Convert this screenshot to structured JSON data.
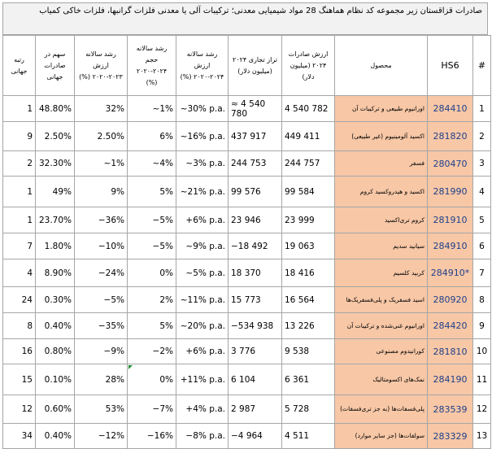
{
  "title": "صادرات قزاقستان زیر مجموعه کد نظام هماهنگ 28 مواد شیمیایی معدنی؛ ترکیبات آلی یا معدنی فلزات گرانبها، فلزات خاکی کمیاب",
  "headers": {
    "rank": "رتبه جهانی",
    "share": "سهم در صادرات جهانی",
    "value_growth": "رشد سالانه ارزش ۲۰۲۳-۲۰۲۰ (%)",
    "volume_growth": "رشد سالانه حجم ۲۰۲۴-۲۰۲۰ (%)",
    "annual_value_growth": "رشد سالانه ارزش ۲۰۲۴-۲۰۲۰ (%)",
    "trade_balance": "تراز تجاری ۲۰۲۴ (میلیون دلار)",
    "exports": "ارزش صادرات ۲۰۲۴ (میلیون دلار)",
    "product": "محصول",
    "hs6": "HS6",
    "index": "#"
  },
  "rows": [
    {
      "rank": "1",
      "share": "48.80%",
      "value_growth": "32%",
      "volume_growth": "~1%",
      "annual_value_growth": "~30% p.a.",
      "trade_balance": "≈ 4 540 780",
      "exports": "4 540 782",
      "product": "اورانیوم طبیعی و ترکیبات آن",
      "hs6": "284410",
      "index": "1"
    },
    {
      "rank": "9",
      "share": "2.50%",
      "value_growth": "2.50%",
      "volume_growth": "6%",
      "annual_value_growth": "~16% p.a.",
      "trade_balance": "437 917",
      "exports": "449 411",
      "product": "اکسید آلومینیوم (غیر طبیعی)",
      "hs6": "281820",
      "index": "2"
    },
    {
      "rank": "2",
      "share": "32.30%",
      "value_growth": "~1%",
      "volume_growth": "~4%",
      "annual_value_growth": "~3% p.a.",
      "trade_balance": "244 753",
      "exports": "244 757",
      "product": "فسفر",
      "hs6": "280470",
      "index": "3"
    },
    {
      "rank": "1",
      "share": "49%",
      "value_growth": "9%",
      "volume_growth": "5%",
      "annual_value_growth": "~21% p.a.",
      "trade_balance": "99 576",
      "exports": "99 584",
      "product": "اکسید و هیدروکسید کروم",
      "hs6": "281990",
      "index": "4"
    },
    {
      "rank": "1",
      "share": "23.70%",
      "value_growth": "−36%",
      "volume_growth": "−5%",
      "annual_value_growth": "+6% p.a.",
      "trade_balance": "23 946",
      "exports": "23 999",
      "product": "کروم تری‌اکسید",
      "hs6": "281910",
      "index": "5"
    },
    {
      "rank": "7",
      "share": "1.80%",
      "value_growth": "−10%",
      "volume_growth": "−5%",
      "annual_value_growth": "~9% p.a.",
      "trade_balance": "−18 492",
      "exports": "19 063",
      "product": "سیانید سدیم",
      "hs6": "284910",
      "index": "6"
    },
    {
      "rank": "4",
      "share": "8.90%",
      "value_growth": "−24%",
      "volume_growth": "0%",
      "annual_value_growth": "~5% p.a.",
      "trade_balance": "18 370",
      "exports": "18 416",
      "product": "کربید کلسیم",
      "hs6": "284910*",
      "index": "7"
    },
    {
      "rank": "24",
      "share": "0.30%",
      "value_growth": "−5%",
      "volume_growth": "2%",
      "annual_value_growth": "~11% p.a.",
      "trade_balance": "15 773",
      "exports": "16 564",
      "product": "اسید فسفریک و پلی‌فسفریک‌ها",
      "hs6": "280920",
      "index": "8"
    },
    {
      "rank": "8",
      "share": "0.40%",
      "value_growth": "−35%",
      "volume_growth": "5%",
      "annual_value_growth": "~20% p.a.",
      "trade_balance": "−534 938",
      "exports": "13 226",
      "product": "اورانیوم غنی‌شده و ترکیبات آن",
      "hs6": "284420",
      "index": "9"
    },
    {
      "rank": "16",
      "share": "0.80%",
      "value_growth": "−9%",
      "volume_growth": "−2%",
      "annual_value_growth": "+6% p.a.",
      "trade_balance": "3 776",
      "exports": "9 538",
      "product": "کورانیدوم مصنوعی",
      "hs6": "281810",
      "index": "10"
    },
    {
      "rank": "15",
      "share": "0.10%",
      "value_growth": "28%",
      "volume_growth": "0%",
      "annual_value_growth": "+11% p.a.",
      "trade_balance": "6 104",
      "exports": "6 361",
      "product": "نمک‌های اکسومتالیک",
      "hs6": "284190",
      "index": "11"
    },
    {
      "rank": "12",
      "share": "0.60%",
      "value_growth": "53%",
      "volume_growth": "−7%",
      "annual_value_growth": "+4% p.a.",
      "trade_balance": "2 987",
      "exports": "5 728",
      "product": "پلی‌فسفات‌ها (به جز تری‌فسفات)",
      "hs6": "283539",
      "index": "12"
    },
    {
      "rank": "34",
      "share": "0.40%",
      "value_growth": "−12%",
      "volume_growth": "−16%",
      "annual_value_growth": "−8% p.a.",
      "trade_balance": "−4 964",
      "exports": "4 511",
      "product": "سولفات‌ها (جز سایر موارد)",
      "hs6": "283329",
      "index": "13"
    }
  ],
  "colors": {
    "product_fill": "#f7c7a6",
    "hs6_text": "#1f3f8a",
    "grid": "#a6a6a6",
    "comment_marker": "#1e8c2e"
  }
}
